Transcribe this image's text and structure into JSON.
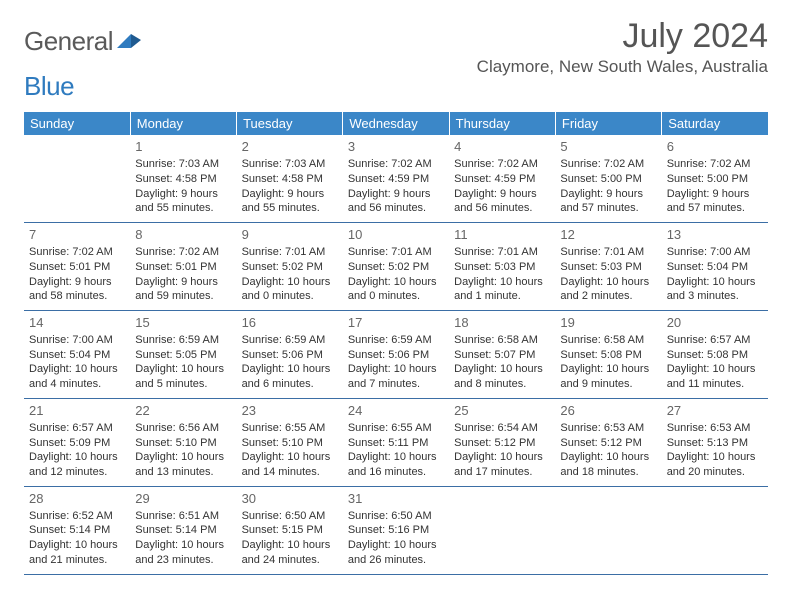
{
  "logo": {
    "text1": "General",
    "text2": "Blue"
  },
  "title": "July 2024",
  "location": "Claymore, New South Wales, Australia",
  "colors": {
    "header_bg": "#3b87c8",
    "header_text": "#ffffff",
    "row_border": "#3b6ea5",
    "text": "#333333",
    "daynum": "#666666",
    "logo_gray": "#5a5a5a",
    "logo_blue": "#2f7bbf",
    "title_color": "#555555",
    "background": "#ffffff"
  },
  "typography": {
    "title_fontsize": 34,
    "location_fontsize": 17,
    "header_fontsize": 13,
    "daynum_fontsize": 13,
    "cell_fontsize": 11
  },
  "day_headers": [
    "Sunday",
    "Monday",
    "Tuesday",
    "Wednesday",
    "Thursday",
    "Friday",
    "Saturday"
  ],
  "weeks": [
    [
      null,
      {
        "n": "1",
        "sr": "Sunrise: 7:03 AM",
        "ss": "Sunset: 4:58 PM",
        "dl": "Daylight: 9 hours and 55 minutes."
      },
      {
        "n": "2",
        "sr": "Sunrise: 7:03 AM",
        "ss": "Sunset: 4:58 PM",
        "dl": "Daylight: 9 hours and 55 minutes."
      },
      {
        "n": "3",
        "sr": "Sunrise: 7:02 AM",
        "ss": "Sunset: 4:59 PM",
        "dl": "Daylight: 9 hours and 56 minutes."
      },
      {
        "n": "4",
        "sr": "Sunrise: 7:02 AM",
        "ss": "Sunset: 4:59 PM",
        "dl": "Daylight: 9 hours and 56 minutes."
      },
      {
        "n": "5",
        "sr": "Sunrise: 7:02 AM",
        "ss": "Sunset: 5:00 PM",
        "dl": "Daylight: 9 hours and 57 minutes."
      },
      {
        "n": "6",
        "sr": "Sunrise: 7:02 AM",
        "ss": "Sunset: 5:00 PM",
        "dl": "Daylight: 9 hours and 57 minutes."
      }
    ],
    [
      {
        "n": "7",
        "sr": "Sunrise: 7:02 AM",
        "ss": "Sunset: 5:01 PM",
        "dl": "Daylight: 9 hours and 58 minutes."
      },
      {
        "n": "8",
        "sr": "Sunrise: 7:02 AM",
        "ss": "Sunset: 5:01 PM",
        "dl": "Daylight: 9 hours and 59 minutes."
      },
      {
        "n": "9",
        "sr": "Sunrise: 7:01 AM",
        "ss": "Sunset: 5:02 PM",
        "dl": "Daylight: 10 hours and 0 minutes."
      },
      {
        "n": "10",
        "sr": "Sunrise: 7:01 AM",
        "ss": "Sunset: 5:02 PM",
        "dl": "Daylight: 10 hours and 0 minutes."
      },
      {
        "n": "11",
        "sr": "Sunrise: 7:01 AM",
        "ss": "Sunset: 5:03 PM",
        "dl": "Daylight: 10 hours and 1 minute."
      },
      {
        "n": "12",
        "sr": "Sunrise: 7:01 AM",
        "ss": "Sunset: 5:03 PM",
        "dl": "Daylight: 10 hours and 2 minutes."
      },
      {
        "n": "13",
        "sr": "Sunrise: 7:00 AM",
        "ss": "Sunset: 5:04 PM",
        "dl": "Daylight: 10 hours and 3 minutes."
      }
    ],
    [
      {
        "n": "14",
        "sr": "Sunrise: 7:00 AM",
        "ss": "Sunset: 5:04 PM",
        "dl": "Daylight: 10 hours and 4 minutes."
      },
      {
        "n": "15",
        "sr": "Sunrise: 6:59 AM",
        "ss": "Sunset: 5:05 PM",
        "dl": "Daylight: 10 hours and 5 minutes."
      },
      {
        "n": "16",
        "sr": "Sunrise: 6:59 AM",
        "ss": "Sunset: 5:06 PM",
        "dl": "Daylight: 10 hours and 6 minutes."
      },
      {
        "n": "17",
        "sr": "Sunrise: 6:59 AM",
        "ss": "Sunset: 5:06 PM",
        "dl": "Daylight: 10 hours and 7 minutes."
      },
      {
        "n": "18",
        "sr": "Sunrise: 6:58 AM",
        "ss": "Sunset: 5:07 PM",
        "dl": "Daylight: 10 hours and 8 minutes."
      },
      {
        "n": "19",
        "sr": "Sunrise: 6:58 AM",
        "ss": "Sunset: 5:08 PM",
        "dl": "Daylight: 10 hours and 9 minutes."
      },
      {
        "n": "20",
        "sr": "Sunrise: 6:57 AM",
        "ss": "Sunset: 5:08 PM",
        "dl": "Daylight: 10 hours and 11 minutes."
      }
    ],
    [
      {
        "n": "21",
        "sr": "Sunrise: 6:57 AM",
        "ss": "Sunset: 5:09 PM",
        "dl": "Daylight: 10 hours and 12 minutes."
      },
      {
        "n": "22",
        "sr": "Sunrise: 6:56 AM",
        "ss": "Sunset: 5:10 PM",
        "dl": "Daylight: 10 hours and 13 minutes."
      },
      {
        "n": "23",
        "sr": "Sunrise: 6:55 AM",
        "ss": "Sunset: 5:10 PM",
        "dl": "Daylight: 10 hours and 14 minutes."
      },
      {
        "n": "24",
        "sr": "Sunrise: 6:55 AM",
        "ss": "Sunset: 5:11 PM",
        "dl": "Daylight: 10 hours and 16 minutes."
      },
      {
        "n": "25",
        "sr": "Sunrise: 6:54 AM",
        "ss": "Sunset: 5:12 PM",
        "dl": "Daylight: 10 hours and 17 minutes."
      },
      {
        "n": "26",
        "sr": "Sunrise: 6:53 AM",
        "ss": "Sunset: 5:12 PM",
        "dl": "Daylight: 10 hours and 18 minutes."
      },
      {
        "n": "27",
        "sr": "Sunrise: 6:53 AM",
        "ss": "Sunset: 5:13 PM",
        "dl": "Daylight: 10 hours and 20 minutes."
      }
    ],
    [
      {
        "n": "28",
        "sr": "Sunrise: 6:52 AM",
        "ss": "Sunset: 5:14 PM",
        "dl": "Daylight: 10 hours and 21 minutes."
      },
      {
        "n": "29",
        "sr": "Sunrise: 6:51 AM",
        "ss": "Sunset: 5:14 PM",
        "dl": "Daylight: 10 hours and 23 minutes."
      },
      {
        "n": "30",
        "sr": "Sunrise: 6:50 AM",
        "ss": "Sunset: 5:15 PM",
        "dl": "Daylight: 10 hours and 24 minutes."
      },
      {
        "n": "31",
        "sr": "Sunrise: 6:50 AM",
        "ss": "Sunset: 5:16 PM",
        "dl": "Daylight: 10 hours and 26 minutes."
      },
      null,
      null,
      null
    ]
  ]
}
